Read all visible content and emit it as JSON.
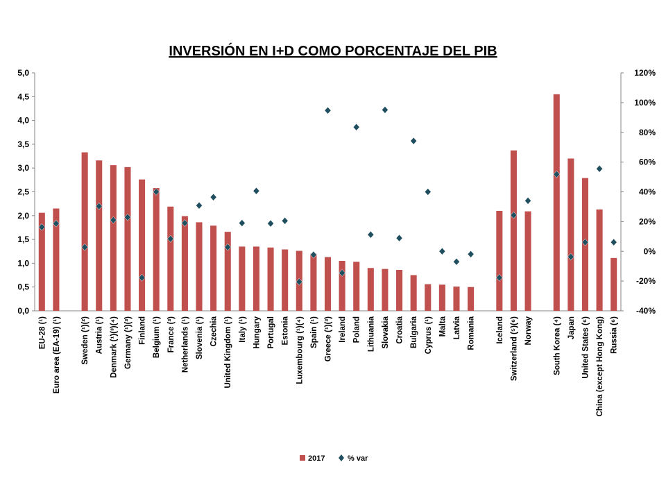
{
  "chart_data": {
    "type": "bar-scatter",
    "title": "INVERSIÓN EN I+D COMO PORCENTAJE DEL PIB",
    "categories": [
      "EU-28 (¹)",
      "Euro area (EA-19) (¹)",
      null,
      "Sweden (¹)(²)",
      "Austria (¹)",
      "Denmark (¹)(³)(⁴)",
      "Germany (¹)(³)",
      "Finland",
      "Belgium (¹)",
      "France (³)",
      "Netherlands (¹)",
      "Slovenia (¹)",
      "Czechia",
      "United Kingdom (¹)",
      "Italy (¹)",
      "Hungary",
      "Portugal",
      "Estonia",
      "Luxembourg (¹)(⁴)",
      "Spain (¹)",
      "Greece (¹)(³)",
      "Ireland",
      "Poland",
      "Lithuania",
      "Slovakia",
      "Croatia",
      "Bulgaria",
      "Cyprus (¹)",
      "Malta",
      "Latvia",
      "Romania",
      null,
      "Iceland",
      "Switzerland (⁵)(⁶)",
      "Norway",
      null,
      "South Korea (⁴)",
      "Japan",
      "United States (⁶)",
      "China (except Hong Kong)",
      "Russia (⁶)"
    ],
    "series": [
      {
        "name": "2017",
        "kind": "bar",
        "color": "#c0504d",
        "values": [
          2.06,
          2.15,
          null,
          3.33,
          3.16,
          3.06,
          3.02,
          2.76,
          2.58,
          2.19,
          1.99,
          1.86,
          1.79,
          1.66,
          1.35,
          1.35,
          1.33,
          1.29,
          1.26,
          1.2,
          1.13,
          1.05,
          1.03,
          0.9,
          0.88,
          0.86,
          0.75,
          0.56,
          0.55,
          0.51,
          0.5,
          null,
          2.1,
          3.37,
          2.09,
          null,
          4.55,
          3.2,
          2.79,
          2.13,
          1.11
        ]
      },
      {
        "name": "% var",
        "kind": "marker",
        "axis": "y2",
        "color": "#1f4e5f",
        "values": [
          16.3,
          18.7,
          null,
          2.8,
          30.3,
          21,
          22.9,
          -17.7,
          40,
          8.4,
          19,
          30.8,
          36.4,
          2.8,
          19,
          40.6,
          18.7,
          20.5,
          -20.5,
          -2.3,
          94.7,
          -14.5,
          83.5,
          11.2,
          95.1,
          8.9,
          74.2,
          40,
          0,
          -7,
          -1.9,
          null,
          -17.7,
          24.3,
          34,
          null,
          51.8,
          -3.7,
          6.1,
          55.5,
          6.1
        ]
      }
    ],
    "ylim": [
      0,
      5
    ],
    "yticks": [
      {
        "value": 0,
        "label": "0,0"
      },
      {
        "value": 0.5,
        "label": "0,5"
      },
      {
        "value": 1,
        "label": "1,0"
      },
      {
        "value": 1.5,
        "label": "1,5"
      },
      {
        "value": 2,
        "label": "2,0"
      },
      {
        "value": 2.5,
        "label": "2,5"
      },
      {
        "value": 3,
        "label": "3,0"
      },
      {
        "value": 3.5,
        "label": "3,5"
      },
      {
        "value": 4,
        "label": "4,0"
      },
      {
        "value": 4.5,
        "label": "4,5"
      },
      {
        "value": 5,
        "label": "5,0"
      }
    ],
    "y2lim": [
      -40,
      120
    ],
    "y2ticks": [
      {
        "value": -40,
        "label": "-40%"
      },
      {
        "value": -20,
        "label": "-20%"
      },
      {
        "value": 0,
        "label": "0%"
      },
      {
        "value": 20,
        "label": "20%"
      },
      {
        "value": 40,
        "label": "40%"
      },
      {
        "value": 60,
        "label": "60%"
      },
      {
        "value": 80,
        "label": "80%"
      },
      {
        "value": 100,
        "label": "100%"
      },
      {
        "value": 120,
        "label": "120%"
      }
    ],
    "legend": "bottom"
  }
}
